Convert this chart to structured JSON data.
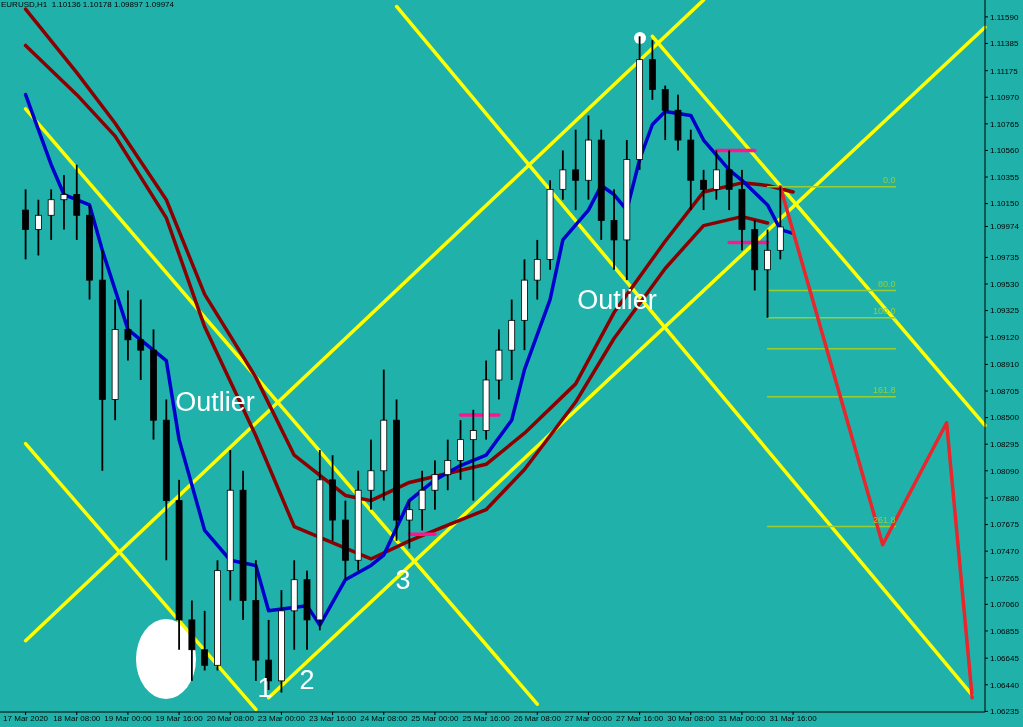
{
  "chart_data": {
    "type": "candlestick",
    "title": "EURUSD,H1  1.10136 1.10178 1.09897 1.09974",
    "categories": [
      null,
      null,
      "17 Mar 2020",
      null,
      null,
      null,
      "18 Mar 08:00",
      null,
      null,
      null,
      "19 Mar 00:00",
      null,
      null,
      null,
      "19 Mar 16:00",
      null,
      null,
      null,
      "20 Mar 08:00",
      null,
      null,
      null,
      "23 Mar 00:00",
      null,
      null,
      null,
      "23 Mar 16:00",
      null,
      null,
      null,
      "24 Mar 08:00",
      null,
      null,
      null,
      "25 Mar 00:00",
      null,
      null,
      null,
      "25 Mar 16:00",
      null,
      null,
      null,
      "26 Mar 08:00",
      null,
      null,
      null,
      "27 Mar 00:00",
      null,
      null,
      null,
      "27 Mar 16:00",
      null,
      null,
      null,
      "30 Mar 08:00",
      null,
      null,
      null,
      "31 Mar 00:00",
      null,
      null,
      null,
      "31 Mar 16:00",
      null,
      null,
      null,
      null,
      null,
      null,
      null,
      null,
      null,
      null,
      null,
      null,
      null,
      null,
      null
    ],
    "ohlc": [
      null,
      null,
      [
        1.101,
        1.1026,
        1.0972,
        1.0995
      ],
      [
        1.0995,
        1.1018,
        1.0975,
        1.1006
      ],
      [
        1.1006,
        1.1026,
        1.0987,
        1.1018
      ],
      [
        1.1018,
        1.1037,
        1.0995,
        1.1022
      ],
      [
        1.1022,
        1.1045,
        1.0987,
        1.1006
      ],
      [
        1.1006,
        1.1014,
        1.0941,
        1.0956
      ],
      [
        1.0956,
        1.0979,
        1.0809,
        1.0864
      ],
      [
        1.0864,
        1.0941,
        1.0848,
        1.0918
      ],
      [
        1.0918,
        1.0948,
        1.0894,
        1.091
      ],
      [
        1.091,
        1.0941,
        1.0879,
        1.0902
      ],
      [
        1.0902,
        1.0918,
        1.0833,
        1.0848
      ],
      [
        1.0848,
        1.0864,
        1.074,
        1.0786
      ],
      [
        1.0786,
        1.0802,
        1.0671,
        1.0694
      ],
      [
        1.0694,
        1.0709,
        1.0647,
        1.0671
      ],
      [
        1.0671,
        1.0701,
        1.0655,
        1.0659
      ],
      [
        1.0659,
        1.074,
        1.0655,
        1.0732
      ],
      [
        1.0732,
        1.0825,
        1.0709,
        1.0794
      ],
      [
        1.0794,
        1.0809,
        1.0694,
        1.0709
      ],
      [
        1.0709,
        1.074,
        1.0647,
        1.0663
      ],
      [
        1.0663,
        1.0694,
        1.064,
        1.0647
      ],
      [
        1.0647,
        1.0717,
        1.0638,
        1.0701
      ],
      [
        1.0701,
        1.074,
        1.0671,
        1.0725
      ],
      [
        1.0725,
        1.0732,
        1.0671,
        1.0694
      ],
      [
        1.0694,
        1.0825,
        1.0686,
        1.0802
      ],
      [
        1.0802,
        1.0821,
        1.0755,
        1.0771
      ],
      [
        1.0771,
        1.0786,
        1.0725,
        1.074
      ],
      [
        1.074,
        1.0809,
        1.0732,
        1.0794
      ],
      [
        1.0794,
        1.0833,
        1.0779,
        1.0809
      ],
      [
        1.0809,
        1.0887,
        1.0786,
        1.0848
      ],
      [
        1.0848,
        1.0864,
        1.0755,
        1.0771
      ],
      [
        1.0771,
        1.0786,
        1.0749,
        1.0779
      ],
      [
        1.0779,
        1.0809,
        1.0763,
        1.0794
      ],
      [
        1.0794,
        1.0817,
        1.0779,
        1.0806
      ],
      [
        1.0806,
        1.0833,
        1.0794,
        1.0817
      ],
      [
        1.0817,
        1.0848,
        1.0802,
        1.0833
      ],
      [
        1.0833,
        1.0856,
        1.0786,
        1.084
      ],
      [
        1.084,
        1.0894,
        1.0833,
        1.0879
      ],
      [
        1.0879,
        1.0918,
        1.0864,
        1.0902
      ],
      [
        1.0902,
        1.0941,
        1.0879,
        1.0925
      ],
      [
        1.0925,
        1.0972,
        1.0902,
        1.0956
      ],
      [
        1.0956,
        1.0987,
        1.0941,
        1.0972
      ],
      [
        1.0972,
        1.1033,
        1.0964,
        1.1026
      ],
      [
        1.1026,
        1.1056,
        1.1018,
        1.1041
      ],
      [
        1.1041,
        1.1072,
        1.101,
        1.1033
      ],
      [
        1.1033,
        1.1083,
        1.1018,
        1.1064
      ],
      [
        1.1064,
        1.1072,
        1.0987,
        1.1002
      ],
      [
        1.1002,
        1.1026,
        1.0964,
        1.0987
      ],
      [
        1.0987,
        1.1064,
        1.0956,
        1.1049
      ],
      [
        1.1049,
        1.1144,
        1.1041,
        1.1126
      ],
      [
        1.1126,
        1.1141,
        1.1095,
        1.1103
      ],
      [
        1.1103,
        1.1106,
        1.1064,
        1.1087
      ],
      [
        1.1087,
        1.1099,
        1.1056,
        1.1064
      ],
      [
        1.1064,
        1.1072,
        1.101,
        1.1033
      ],
      [
        1.1033,
        1.1041,
        1.101,
        1.1026
      ],
      [
        1.1026,
        1.1056,
        1.1018,
        1.1041
      ],
      [
        1.1041,
        1.1056,
        1.101,
        1.1026
      ],
      [
        1.1026,
        1.1041,
        1.0979,
        1.0995
      ],
      [
        1.0995,
        1.1002,
        1.0948,
        1.0964
      ],
      [
        1.0964,
        1.0995,
        1.0927,
        1.0979
      ],
      [
        1.0979,
        1.1028,
        1.0972,
        1.0997
      ],
      null,
      null,
      null,
      null,
      null,
      null,
      null,
      null,
      null,
      null,
      null,
      null,
      null,
      null,
      null,
      null
    ],
    "series": [
      {
        "type": "line",
        "color": "#ffff00",
        "values": [
          null,
          null,
          1.1088,
          null,
          null,
          null,
          null,
          null,
          null,
          null,
          null,
          null,
          null,
          null,
          null,
          null,
          null,
          null,
          null,
          null,
          null,
          null,
          null,
          null,
          null,
          null,
          null,
          null,
          null,
          null,
          null,
          null,
          null,
          null,
          null,
          null,
          null,
          null,
          null,
          null,
          null,
          null,
          1.0629,
          null,
          null,
          null,
          null,
          null,
          null,
          null,
          null,
          null,
          null,
          null,
          null,
          null,
          null,
          null,
          null,
          null,
          null,
          null,
          null,
          null,
          null,
          null,
          null,
          null,
          null,
          null,
          null,
          null,
          null,
          null,
          null,
          null,
          null,
          null
        ]
      },
      {
        "type": "line",
        "color": "#ffff00",
        "values": [
          null,
          null,
          1.083,
          null,
          null,
          null,
          null,
          null,
          null,
          null,
          null,
          null,
          null,
          null,
          null,
          null,
          null,
          null,
          null,
          null,
          1.0625,
          null,
          null,
          null,
          null,
          null,
          null,
          null,
          null,
          null,
          null,
          null,
          null,
          null,
          null,
          null,
          null,
          null,
          null,
          null,
          null,
          null,
          null,
          null,
          null,
          null,
          null,
          null,
          null,
          null,
          null,
          null,
          null,
          null,
          null,
          null,
          null,
          null,
          null,
          null,
          null,
          null,
          null,
          null,
          null,
          null,
          null,
          null,
          null,
          null,
          null,
          null,
          null,
          null,
          null,
          null,
          null,
          null
        ]
      },
      {
        "type": "line",
        "color": "#ffff00",
        "values": [
          null,
          null,
          null,
          null,
          null,
          null,
          null,
          null,
          null,
          null,
          null,
          null,
          null,
          null,
          null,
          null,
          null,
          null,
          null,
          null,
          null,
          null,
          null,
          null,
          null,
          null,
          null,
          null,
          null,
          null,
          null,
          1.1167,
          null,
          null,
          null,
          null,
          null,
          null,
          null,
          null,
          null,
          null,
          null,
          null,
          null,
          null,
          null,
          null,
          null,
          null,
          null,
          null,
          null,
          null,
          null,
          null,
          null,
          null,
          null,
          null,
          null,
          null,
          null,
          null,
          null,
          null,
          null,
          null,
          null,
          null,
          null,
          null,
          null,
          null,
          null,
          null,
          1.0636,
          null
        ]
      },
      {
        "type": "line",
        "color": "#ffff00",
        "values": [
          null,
          null,
          null,
          null,
          null,
          null,
          null,
          null,
          null,
          null,
          null,
          null,
          null,
          null,
          null,
          null,
          null,
          null,
          null,
          null,
          null,
          null,
          null,
          null,
          null,
          null,
          null,
          null,
          null,
          null,
          null,
          null,
          null,
          null,
          null,
          null,
          null,
          null,
          null,
          null,
          null,
          null,
          null,
          null,
          null,
          null,
          null,
          null,
          null,
          null,
          null,
          1.1144,
          null,
          null,
          null,
          null,
          null,
          null,
          null,
          null,
          null,
          null,
          null,
          null,
          null,
          null,
          null,
          null,
          null,
          null,
          null,
          null,
          null,
          null,
          null,
          null,
          null,
          1.0844
        ]
      },
      {
        "type": "line",
        "color": "#ffff00",
        "values": [
          null,
          null,
          1.0678,
          null,
          null,
          null,
          null,
          null,
          null,
          null,
          null,
          null,
          null,
          null,
          null,
          null,
          null,
          null,
          null,
          null,
          null,
          null,
          null,
          null,
          null,
          null,
          null,
          null,
          null,
          null,
          null,
          null,
          null,
          null,
          null,
          null,
          null,
          null,
          null,
          null,
          null,
          null,
          null,
          null,
          null,
          null,
          null,
          null,
          null,
          null,
          null,
          null,
          null,
          null,
          null,
          1.1172,
          null,
          null,
          null,
          null,
          null,
          null,
          null,
          null,
          null,
          null,
          null,
          null,
          null,
          null,
          null,
          null,
          null,
          null,
          null,
          null,
          null,
          null
        ]
      },
      {
        "type": "line",
        "color": "#ffff00",
        "values": [
          null,
          null,
          null,
          null,
          null,
          null,
          null,
          null,
          null,
          null,
          null,
          null,
          null,
          null,
          null,
          null,
          null,
          null,
          null,
          null,
          null,
          1.0634,
          null,
          null,
          null,
          null,
          null,
          null,
          null,
          null,
          null,
          null,
          null,
          null,
          null,
          null,
          null,
          null,
          null,
          null,
          null,
          null,
          null,
          null,
          null,
          null,
          null,
          null,
          null,
          null,
          null,
          null,
          null,
          null,
          null,
          null,
          null,
          null,
          null,
          null,
          null,
          null,
          null,
          null,
          null,
          null,
          null,
          null,
          null,
          null,
          null,
          null,
          null,
          null,
          null,
          null,
          null,
          1.1151
        ]
      },
      {
        "type": "line",
        "color": "#8b0000",
        "values": [
          null,
          null,
          1.1165,
          null,
          null,
          null,
          1.1116,
          null,
          null,
          1.1077,
          null,
          null,
          null,
          1.1018,
          null,
          null,
          1.0945,
          null,
          null,
          null,
          1.0881,
          null,
          null,
          1.0821,
          null,
          null,
          null,
          1.079,
          null,
          1.0786,
          null,
          null,
          1.08,
          null,
          null,
          null,
          null,
          null,
          1.0814,
          null,
          null,
          1.0838,
          null,
          null,
          null,
          1.0876,
          null,
          null,
          1.0931,
          null,
          null,
          null,
          1.0986,
          null,
          null,
          1.1024,
          null,
          null,
          1.1031,
          null,
          1.1029,
          null,
          1.1024,
          null,
          null,
          null,
          null,
          null,
          null,
          null,
          null,
          null,
          null,
          null,
          null,
          null,
          null,
          null
        ]
      },
      {
        "type": "line",
        "color": "#8b0000",
        "values": [
          null,
          null,
          1.1137,
          null,
          null,
          null,
          1.1099,
          null,
          null,
          1.1067,
          null,
          null,
          null,
          1.1004,
          null,
          null,
          1.092,
          null,
          null,
          null,
          1.0836,
          null,
          null,
          1.0766,
          null,
          null,
          null,
          null,
          null,
          1.0741,
          null,
          null,
          1.0755,
          null,
          null,
          1.0767,
          null,
          null,
          1.0779,
          null,
          null,
          1.081,
          null,
          null,
          null,
          1.0862,
          null,
          null,
          1.0911,
          null,
          null,
          null,
          1.0965,
          null,
          null,
          1.0998,
          null,
          null,
          1.1005,
          null,
          1.1,
          null,
          null,
          null,
          null,
          null,
          null,
          null,
          null,
          null,
          null,
          null,
          null,
          null,
          null,
          null,
          null,
          null
        ]
      },
      {
        "type": "line",
        "color": "#0000cd",
        "values": [
          null,
          null,
          1.1099,
          null,
          1.1045,
          1.1022,
          null,
          1.1014,
          1.0979,
          null,
          1.0918,
          1.091,
          null,
          1.0894,
          1.0833,
          null,
          1.0763,
          null,
          1.074,
          null,
          1.0736,
          1.0701,
          null,
          null,
          1.0705,
          1.069,
          null,
          1.0725,
          null,
          1.0736,
          1.0744,
          null,
          1.0786,
          null,
          1.0802,
          null,
          1.0813,
          null,
          1.0821,
          null,
          1.0848,
          1.0887,
          null,
          1.0941,
          1.0987,
          null,
          1.101,
          1.1029,
          1.1022,
          1.101,
          1.1049,
          1.1076,
          1.1086,
          null,
          1.1083,
          1.1064,
          null,
          1.1041,
          1.1033,
          null,
          1.1014,
          1.0995,
          1.0992,
          null,
          null,
          null,
          null,
          null,
          null,
          null,
          null,
          null,
          null,
          null,
          null,
          null,
          null,
          null
        ]
      },
      {
        "type": "line",
        "color": "#ff1493",
        "values": [
          null,
          null,
          null,
          null,
          null,
          null,
          null,
          null,
          null,
          null,
          null,
          null,
          null,
          null,
          null,
          null,
          null,
          null,
          null,
          null,
          null,
          null,
          null,
          null,
          null,
          null,
          null,
          null,
          null,
          null,
          null,
          null,
          null,
          null,
          null,
          null,
          1.0852,
          null,
          null,
          1.0852,
          null,
          null,
          null,
          null,
          null,
          null,
          null,
          null,
          null,
          null,
          null,
          null,
          null,
          null,
          null,
          null,
          null,
          null,
          null,
          null,
          null,
          null,
          null,
          null,
          null,
          null,
          null,
          null,
          null,
          null,
          null,
          null,
          null,
          null,
          null,
          null,
          null,
          null
        ]
      },
      {
        "type": "line",
        "color": "#ff1493",
        "values": [
          null,
          null,
          null,
          null,
          null,
          null,
          null,
          null,
          null,
          null,
          null,
          null,
          null,
          null,
          null,
          null,
          null,
          null,
          null,
          null,
          null,
          null,
          null,
          null,
          null,
          null,
          null,
          null,
          null,
          null,
          null,
          null,
          null,
          null,
          null,
          null,
          null,
          null,
          null,
          null,
          null,
          null,
          null,
          null,
          null,
          null,
          null,
          null,
          null,
          null,
          null,
          null,
          null,
          null,
          null,
          null,
          1.1056,
          null,
          null,
          1.1056,
          null,
          null,
          null,
          null,
          null,
          null,
          null,
          null,
          null,
          null,
          null,
          null,
          null,
          null,
          null,
          null,
          null,
          null
        ]
      },
      {
        "type": "line",
        "color": "#ff1493",
        "values": [
          null,
          null,
          null,
          null,
          null,
          null,
          null,
          null,
          null,
          null,
          null,
          null,
          null,
          null,
          null,
          null,
          null,
          null,
          null,
          null,
          null,
          null,
          null,
          null,
          null,
          null,
          null,
          null,
          null,
          null,
          null,
          null,
          null,
          null,
          null,
          null,
          null,
          null,
          null,
          null,
          null,
          null,
          null,
          null,
          null,
          null,
          null,
          null,
          null,
          null,
          null,
          null,
          null,
          null,
          null,
          null,
          null,
          1.0985,
          null,
          null,
          1.0985,
          null,
          null,
          null,
          null,
          null,
          null,
          null,
          null,
          null,
          null,
          null,
          null,
          null,
          null,
          null,
          null,
          null
        ]
      },
      {
        "type": "line",
        "color": "#ff1493",
        "values": [
          null,
          null,
          null,
          null,
          null,
          null,
          null,
          null,
          null,
          null,
          null,
          null,
          null,
          null,
          null,
          null,
          null,
          null,
          null,
          null,
          null,
          null,
          null,
          null,
          null,
          null,
          null,
          null,
          null,
          null,
          null,
          null,
          1.076,
          null,
          1.076,
          null,
          null,
          null,
          null,
          null,
          null,
          null,
          null,
          null,
          null,
          null,
          null,
          null,
          null,
          null,
          null,
          null,
          null,
          null,
          null,
          null,
          null,
          null,
          null,
          null,
          null,
          null,
          null,
          null,
          null,
          null,
          null,
          null,
          null,
          null,
          null,
          null,
          null,
          null,
          null,
          null,
          null,
          null
        ]
      },
      {
        "type": "line",
        "name": "0.0",
        "color": "#9acd32",
        "values": [
          null,
          null,
          null,
          null,
          null,
          null,
          null,
          null,
          null,
          null,
          null,
          null,
          null,
          null,
          null,
          null,
          null,
          null,
          null,
          null,
          null,
          null,
          null,
          null,
          null,
          null,
          null,
          null,
          null,
          null,
          null,
          null,
          null,
          null,
          null,
          null,
          null,
          null,
          null,
          null,
          null,
          null,
          null,
          null,
          null,
          null,
          null,
          null,
          null,
          null,
          null,
          null,
          null,
          null,
          null,
          null,
          null,
          null,
          null,
          null,
          1.1028,
          null,
          null,
          null,
          null,
          null,
          null,
          null,
          null,
          null,
          1.1028,
          null,
          null,
          null,
          null,
          null,
          null,
          null
        ]
      },
      {
        "type": "line",
        "name": "80.0",
        "color": "#9acd32",
        "values": [
          null,
          null,
          null,
          null,
          null,
          null,
          null,
          null,
          null,
          null,
          null,
          null,
          null,
          null,
          null,
          null,
          null,
          null,
          null,
          null,
          null,
          null,
          null,
          null,
          null,
          null,
          null,
          null,
          null,
          null,
          null,
          null,
          null,
          null,
          null,
          null,
          null,
          null,
          null,
          null,
          null,
          null,
          null,
          null,
          null,
          null,
          null,
          null,
          null,
          null,
          null,
          null,
          null,
          null,
          null,
          null,
          null,
          null,
          null,
          null,
          1.0948,
          null,
          null,
          null,
          null,
          null,
          null,
          null,
          null,
          null,
          1.0948,
          null,
          null,
          null,
          null,
          null,
          null,
          null
        ]
      },
      {
        "type": "line",
        "name": "100.0",
        "color": "#9acd32",
        "values": [
          null,
          null,
          null,
          null,
          null,
          null,
          null,
          null,
          null,
          null,
          null,
          null,
          null,
          null,
          null,
          null,
          null,
          null,
          null,
          null,
          null,
          null,
          null,
          null,
          null,
          null,
          null,
          null,
          null,
          null,
          null,
          null,
          null,
          null,
          null,
          null,
          null,
          null,
          null,
          null,
          null,
          null,
          null,
          null,
          null,
          null,
          null,
          null,
          null,
          null,
          null,
          null,
          null,
          null,
          null,
          null,
          null,
          null,
          null,
          null,
          1.0927,
          null,
          null,
          null,
          null,
          null,
          null,
          null,
          null,
          null,
          1.0927,
          null,
          null,
          null,
          null,
          null,
          null,
          null
        ]
      },
      {
        "type": "line",
        "color": "#9acd32",
        "values": [
          null,
          null,
          null,
          null,
          null,
          null,
          null,
          null,
          null,
          null,
          null,
          null,
          null,
          null,
          null,
          null,
          null,
          null,
          null,
          null,
          null,
          null,
          null,
          null,
          null,
          null,
          null,
          null,
          null,
          null,
          null,
          null,
          null,
          null,
          null,
          null,
          null,
          null,
          null,
          null,
          null,
          null,
          null,
          null,
          null,
          null,
          null,
          null,
          null,
          null,
          null,
          null,
          null,
          null,
          null,
          null,
          null,
          null,
          null,
          null,
          1.0903,
          null,
          null,
          null,
          null,
          null,
          null,
          null,
          null,
          null,
          1.0903,
          null,
          null,
          null,
          null,
          null,
          null,
          null
        ]
      },
      {
        "type": "line",
        "name": "161.8",
        "color": "#9acd32",
        "values": [
          null,
          null,
          null,
          null,
          null,
          null,
          null,
          null,
          null,
          null,
          null,
          null,
          null,
          null,
          null,
          null,
          null,
          null,
          null,
          null,
          null,
          null,
          null,
          null,
          null,
          null,
          null,
          null,
          null,
          null,
          null,
          null,
          null,
          null,
          null,
          null,
          null,
          null,
          null,
          null,
          null,
          null,
          null,
          null,
          null,
          null,
          null,
          null,
          null,
          null,
          null,
          null,
          null,
          null,
          null,
          null,
          null,
          null,
          null,
          null,
          1.0866,
          null,
          null,
          null,
          null,
          null,
          null,
          null,
          null,
          null,
          1.0866,
          null,
          null,
          null,
          null,
          null,
          null,
          null
        ]
      },
      {
        "type": "line",
        "name": "261.8",
        "color": "#9acd32",
        "values": [
          null,
          null,
          null,
          null,
          null,
          null,
          null,
          null,
          null,
          null,
          null,
          null,
          null,
          null,
          null,
          null,
          null,
          null,
          null,
          null,
          null,
          null,
          null,
          null,
          null,
          null,
          null,
          null,
          null,
          null,
          null,
          null,
          null,
          null,
          null,
          null,
          null,
          null,
          null,
          null,
          null,
          null,
          null,
          null,
          null,
          null,
          null,
          null,
          null,
          null,
          null,
          null,
          null,
          null,
          null,
          null,
          null,
          null,
          null,
          null,
          1.0766,
          null,
          null,
          null,
          null,
          null,
          null,
          null,
          null,
          null,
          1.0766,
          null,
          null,
          null,
          null,
          null,
          null,
          null
        ]
      },
      {
        "type": "line",
        "color": "#e8262b",
        "values": [
          null,
          null,
          null,
          null,
          null,
          null,
          null,
          null,
          null,
          null,
          null,
          null,
          null,
          null,
          null,
          null,
          null,
          null,
          null,
          null,
          null,
          null,
          null,
          null,
          null,
          null,
          null,
          null,
          null,
          null,
          null,
          null,
          null,
          null,
          null,
          null,
          null,
          null,
          null,
          null,
          null,
          null,
          null,
          null,
          null,
          null,
          null,
          null,
          null,
          null,
          null,
          null,
          null,
          null,
          null,
          null,
          null,
          null,
          null,
          null,
          null,
          1.1028,
          null,
          null,
          null,
          null,
          null,
          null,
          null,
          1.0752,
          null,
          null,
          null,
          null,
          1.0846,
          null,
          1.0634,
          null
        ]
      }
    ],
    "annotations": [
      "Outlier",
      "Outlier",
      "1",
      "2",
      "3"
    ],
    "ylim": [
      1.0623,
      1.1172
    ],
    "yticks": [
      {
        "value": 1.1159,
        "label": "1.11590"
      },
      {
        "value": 1.11385,
        "label": "1.11385"
      },
      {
        "value": 1.11175,
        "label": "1.11175"
      },
      {
        "value": 1.1097,
        "label": "1.10970"
      },
      {
        "value": 1.10765,
        "label": "1.10765"
      },
      {
        "value": 1.1056,
        "label": "1.10560"
      },
      {
        "value": 1.10355,
        "label": "1.10355"
      },
      {
        "value": 1.1015,
        "label": "1.10150"
      },
      {
        "value": 1.09974,
        "label": "1.09974"
      },
      {
        "value": 1.09735,
        "label": "1.09735"
      },
      {
        "value": 1.0953,
        "label": "1.09530"
      },
      {
        "value": 1.09325,
        "label": "1.09325"
      },
      {
        "value": 1.0912,
        "label": "1.09120"
      },
      {
        "value": 1.0891,
        "label": "1.08910"
      },
      {
        "value": 1.08705,
        "label": "1.08705"
      },
      {
        "value": 1.085,
        "label": "1.08500"
      },
      {
        "value": 1.08295,
        "label": "1.08295"
      },
      {
        "value": 1.0809,
        "label": "1.08090"
      },
      {
        "value": 1.0788,
        "label": "1.07880"
      },
      {
        "value": 1.07675,
        "label": "1.07675"
      },
      {
        "value": 1.0747,
        "label": "1.07470"
      },
      {
        "value": 1.07265,
        "label": "1.07265"
      },
      {
        "value": 1.0706,
        "label": "1.07060"
      },
      {
        "value": 1.06855,
        "label": "1.06855"
      },
      {
        "value": 1.06645,
        "label": "1.06645"
      },
      {
        "value": 1.0644,
        "label": "1.06440"
      },
      {
        "value": 1.06235,
        "label": "1.06235"
      }
    ]
  }
}
